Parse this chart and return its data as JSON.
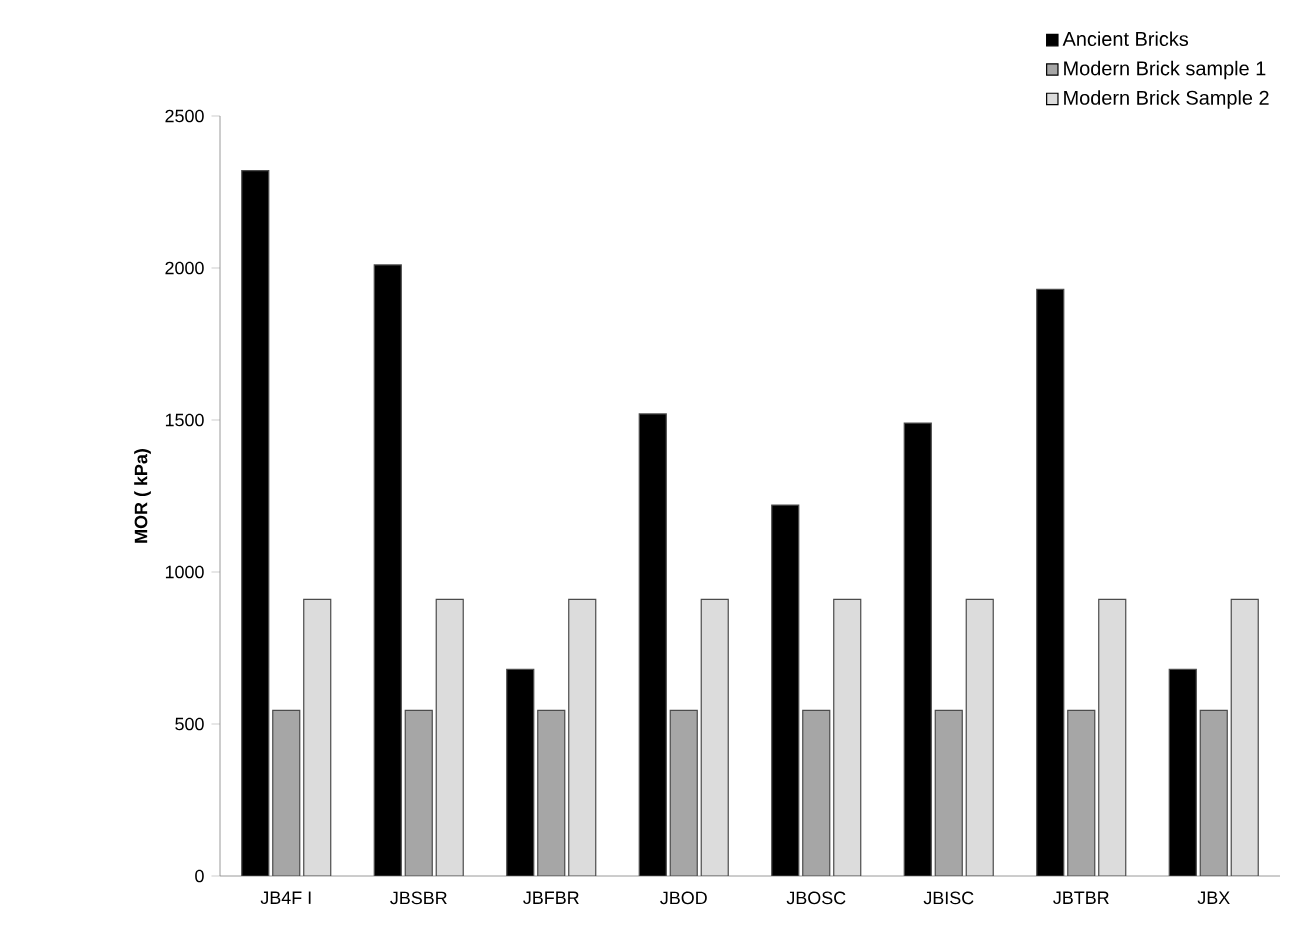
{
  "chart_data": {
    "type": "bar",
    "ylabel": "**MOR ( kPa)**",
    "categories": [
      "JB4F I",
      "JBSBR",
      "JBFBR",
      "JBOD",
      "JBOSC",
      "JBISC",
      "JBTBR",
      "JBX"
    ],
    "series": [
      {
        "name": "Ancient Bricks",
        "color": "#000000",
        "values": [
          2320,
          2010,
          680,
          1520,
          1220,
          1490,
          1930,
          680
        ]
      },
      {
        "name": "Modern Brick sample 1",
        "color": "#a6a6a6",
        "values": [
          545,
          545,
          545,
          545,
          545,
          545,
          545,
          545
        ]
      },
      {
        "name": "Modern Brick Sample 2",
        "color": "#dcdcdc",
        "values": [
          910,
          910,
          910,
          910,
          910,
          910,
          910,
          910
        ]
      }
    ],
    "ylim": [
      0,
      2500
    ],
    "yticks": [
      0,
      500,
      1000,
      1500,
      2000,
      2500
    ],
    "grid": false,
    "legend": "top right"
  }
}
